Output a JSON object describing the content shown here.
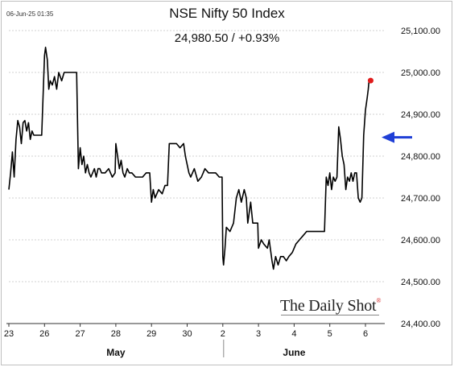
{
  "timestamp": "06-Jun-25 01:35",
  "title": "NSE Nifty 50 Index",
  "subtitle": "24,980.50  /  +0.93%",
  "logo_text": "The Daily Shot",
  "logo_mark": "®",
  "colors": {
    "line": "#000000",
    "last_point": "#e01b1b",
    "arrow": "#1f3fd6",
    "axis": "#333333"
  },
  "chart_data": {
    "type": "line",
    "title": "NSE Nifty 50 Index",
    "ylim": [
      24400,
      25100
    ],
    "y_ticks": [
      24400,
      24500,
      24600,
      24700,
      24800,
      24900,
      25000,
      25100
    ],
    "y_tick_labels": [
      "24,400.00",
      "24,500.00",
      "24,600.00",
      "24,700.00",
      "24,800.00",
      "24,900.00",
      "25,000.00",
      "25,100.00"
    ],
    "x_ticks": [
      0,
      1,
      2,
      3,
      4,
      5,
      6,
      7,
      8,
      9,
      10
    ],
    "x_tick_labels": [
      "23",
      "26",
      "27",
      "28",
      "29",
      "30",
      "2",
      "3",
      "4",
      "5",
      "6"
    ],
    "xlim": [
      0,
      10.1
    ],
    "month_labels": [
      {
        "label": "May",
        "x": 3.0
      },
      {
        "label": "June",
        "x": 8.0
      }
    ],
    "month_divider_x": 6.0,
    "series": [
      {
        "points": [
          [
            0.0,
            24720
          ],
          [
            0.05,
            24760
          ],
          [
            0.1,
            24810
          ],
          [
            0.15,
            24750
          ],
          [
            0.2,
            24840
          ],
          [
            0.25,
            24885
          ],
          [
            0.3,
            24870
          ],
          [
            0.35,
            24830
          ],
          [
            0.4,
            24880
          ],
          [
            0.45,
            24885
          ],
          [
            0.5,
            24860
          ],
          [
            0.55,
            24880
          ],
          [
            0.6,
            24840
          ],
          [
            0.65,
            24860
          ],
          [
            0.7,
            24850
          ],
          [
            0.75,
            24850
          ],
          [
            0.8,
            24850
          ],
          [
            0.85,
            24850
          ],
          [
            0.92,
            24850
          ],
          [
            1.0,
            25040
          ],
          [
            1.03,
            25060
          ],
          [
            1.08,
            25030
          ],
          [
            1.12,
            24960
          ],
          [
            1.16,
            24980
          ],
          [
            1.22,
            24970
          ],
          [
            1.28,
            24990
          ],
          [
            1.34,
            24960
          ],
          [
            1.4,
            25000
          ],
          [
            1.48,
            24980
          ],
          [
            1.55,
            25000
          ],
          [
            1.62,
            25000
          ],
          [
            1.7,
            25000
          ],
          [
            1.78,
            25000
          ],
          [
            1.9,
            25000
          ],
          [
            1.95,
            24770
          ],
          [
            2.0,
            24820
          ],
          [
            2.05,
            24780
          ],
          [
            2.1,
            24800
          ],
          [
            2.15,
            24760
          ],
          [
            2.2,
            24780
          ],
          [
            2.25,
            24760
          ],
          [
            2.3,
            24750
          ],
          [
            2.4,
            24770
          ],
          [
            2.45,
            24750
          ],
          [
            2.5,
            24770
          ],
          [
            2.55,
            24770
          ],
          [
            2.6,
            24760
          ],
          [
            2.7,
            24760
          ],
          [
            2.8,
            24770
          ],
          [
            2.9,
            24750
          ],
          [
            2.98,
            24760
          ],
          [
            3.0,
            24830
          ],
          [
            3.05,
            24800
          ],
          [
            3.1,
            24770
          ],
          [
            3.15,
            24790
          ],
          [
            3.2,
            24760
          ],
          [
            3.25,
            24750
          ],
          [
            3.32,
            24770
          ],
          [
            3.38,
            24760
          ],
          [
            3.45,
            24760
          ],
          [
            3.55,
            24750
          ],
          [
            3.65,
            24750
          ],
          [
            3.75,
            24750
          ],
          [
            3.85,
            24760
          ],
          [
            3.95,
            24760
          ],
          [
            4.0,
            24690
          ],
          [
            4.05,
            24720
          ],
          [
            4.1,
            24700
          ],
          [
            4.2,
            24720
          ],
          [
            4.3,
            24710
          ],
          [
            4.38,
            24730
          ],
          [
            4.45,
            24730
          ],
          [
            4.5,
            24830
          ],
          [
            4.6,
            24830
          ],
          [
            4.7,
            24830
          ],
          [
            4.8,
            24820
          ],
          [
            4.9,
            24830
          ],
          [
            4.95,
            24800
          ],
          [
            5.0,
            24780
          ],
          [
            5.05,
            24760
          ],
          [
            5.1,
            24750
          ],
          [
            5.2,
            24770
          ],
          [
            5.3,
            24740
          ],
          [
            5.4,
            24750
          ],
          [
            5.5,
            24770
          ],
          [
            5.6,
            24760
          ],
          [
            5.7,
            24760
          ],
          [
            5.8,
            24760
          ],
          [
            5.9,
            24750
          ],
          [
            5.98,
            24750
          ],
          [
            6.0,
            24560
          ],
          [
            6.02,
            24540
          ],
          [
            6.06,
            24580
          ],
          [
            6.1,
            24630
          ],
          [
            6.2,
            24620
          ],
          [
            6.3,
            24640
          ],
          [
            6.38,
            24700
          ],
          [
            6.45,
            24720
          ],
          [
            6.52,
            24690
          ],
          [
            6.6,
            24720
          ],
          [
            6.66,
            24700
          ],
          [
            6.7,
            24640
          ],
          [
            6.78,
            24690
          ],
          [
            6.84,
            24640
          ],
          [
            6.92,
            24640
          ],
          [
            6.98,
            24640
          ],
          [
            7.0,
            24580
          ],
          [
            7.08,
            24600
          ],
          [
            7.15,
            24590
          ],
          [
            7.25,
            24580
          ],
          [
            7.3,
            24600
          ],
          [
            7.38,
            24550
          ],
          [
            7.42,
            24530
          ],
          [
            7.48,
            24560
          ],
          [
            7.55,
            24540
          ],
          [
            7.62,
            24560
          ],
          [
            7.7,
            24560
          ],
          [
            7.78,
            24550
          ],
          [
            7.85,
            24560
          ],
          [
            7.95,
            24570
          ],
          [
            8.05,
            24590
          ],
          [
            8.15,
            24600
          ],
          [
            8.25,
            24610
          ],
          [
            8.35,
            24620
          ],
          [
            8.45,
            24620
          ],
          [
            8.55,
            24620
          ],
          [
            8.65,
            24620
          ],
          [
            8.75,
            24620
          ],
          [
            8.85,
            24620
          ],
          [
            8.9,
            24750
          ],
          [
            8.95,
            24730
          ],
          [
            9.0,
            24760
          ],
          [
            9.05,
            24720
          ],
          [
            9.1,
            24750
          ],
          [
            9.15,
            24740
          ],
          [
            9.2,
            24750
          ],
          [
            9.25,
            24870
          ],
          [
            9.3,
            24840
          ],
          [
            9.35,
            24800
          ],
          [
            9.4,
            24780
          ],
          [
            9.45,
            24720
          ],
          [
            9.5,
            24750
          ],
          [
            9.55,
            24740
          ],
          [
            9.6,
            24760
          ],
          [
            9.65,
            24740
          ],
          [
            9.7,
            24760
          ],
          [
            9.75,
            24760
          ],
          [
            9.8,
            24700
          ],
          [
            9.85,
            24690
          ],
          [
            9.9,
            24700
          ],
          [
            9.95,
            24850
          ],
          [
            10.0,
            24910
          ],
          [
            10.05,
            24940
          ],
          [
            10.08,
            24960
          ],
          [
            10.1,
            24980
          ]
        ]
      }
    ],
    "last_value": 24980.5,
    "arrow_level": 24845
  }
}
